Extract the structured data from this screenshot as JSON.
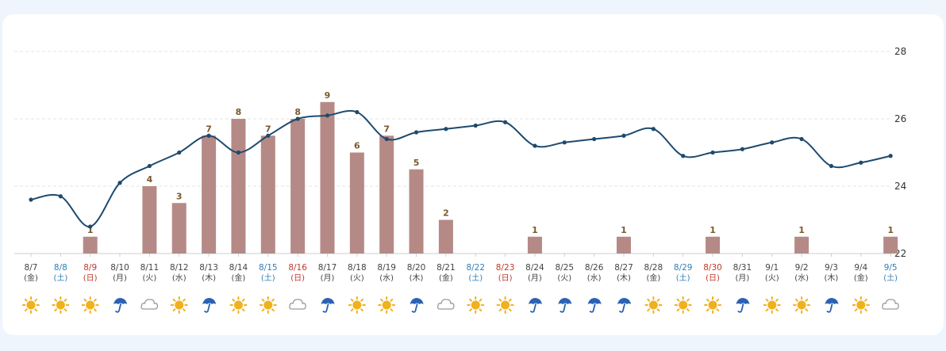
{
  "chart_data": {
    "type": "bar+line",
    "y_axis": {
      "ticks": [
        22,
        24,
        26,
        28
      ],
      "range": [
        22,
        28
      ],
      "position": "right"
    },
    "grid": true,
    "days": [
      {
        "date": "8/7",
        "dow": "(金)",
        "type": "weekday",
        "weather": "sunny",
        "temp": 23.6,
        "count": null
      },
      {
        "date": "8/8",
        "dow": "(土)",
        "type": "sat",
        "weather": "sunny",
        "temp": 23.7,
        "count": null
      },
      {
        "date": "8/9",
        "dow": "(日)",
        "type": "sun",
        "weather": "sunny",
        "temp": 22.8,
        "count": 1
      },
      {
        "date": "8/10",
        "dow": "(月)",
        "type": "weekday",
        "weather": "rain",
        "temp": 24.1,
        "count": null
      },
      {
        "date": "8/11",
        "dow": "(火)",
        "type": "weekday",
        "weather": "cloudy",
        "temp": 24.6,
        "count": 4
      },
      {
        "date": "8/12",
        "dow": "(水)",
        "type": "weekday",
        "weather": "sunny",
        "temp": 25.0,
        "count": 3
      },
      {
        "date": "8/13",
        "dow": "(木)",
        "type": "weekday",
        "weather": "rain",
        "temp": 25.5,
        "count": 7
      },
      {
        "date": "8/14",
        "dow": "(金)",
        "type": "weekday",
        "weather": "sunny",
        "temp": 25.0,
        "count": 8
      },
      {
        "date": "8/15",
        "dow": "(土)",
        "type": "sat",
        "weather": "sunny",
        "temp": 25.5,
        "count": 7
      },
      {
        "date": "8/16",
        "dow": "(日)",
        "type": "sun",
        "weather": "cloudy",
        "temp": 26.0,
        "count": 8
      },
      {
        "date": "8/17",
        "dow": "(月)",
        "type": "weekday",
        "weather": "rain",
        "temp": 26.1,
        "count": 9
      },
      {
        "date": "8/18",
        "dow": "(火)",
        "type": "weekday",
        "weather": "sunny",
        "temp": 26.2,
        "count": 6
      },
      {
        "date": "8/19",
        "dow": "(水)",
        "type": "weekday",
        "weather": "sunny",
        "temp": 25.4,
        "count": 7
      },
      {
        "date": "8/20",
        "dow": "(木)",
        "type": "weekday",
        "weather": "rain",
        "temp": 25.6,
        "count": 5
      },
      {
        "date": "8/21",
        "dow": "(金)",
        "type": "weekday",
        "weather": "cloudy",
        "temp": 25.7,
        "count": 2
      },
      {
        "date": "8/22",
        "dow": "(土)",
        "type": "sat",
        "weather": "sunny",
        "temp": 25.8,
        "count": null
      },
      {
        "date": "8/23",
        "dow": "(日)",
        "type": "sun",
        "weather": "sunny",
        "temp": 25.9,
        "count": null
      },
      {
        "date": "8/24",
        "dow": "(月)",
        "type": "weekday",
        "weather": "rain",
        "temp": 25.2,
        "count": 1
      },
      {
        "date": "8/25",
        "dow": "(火)",
        "type": "weekday",
        "weather": "rain",
        "temp": 25.3,
        "count": null
      },
      {
        "date": "8/26",
        "dow": "(水)",
        "type": "weekday",
        "weather": "rain",
        "temp": 25.4,
        "count": null
      },
      {
        "date": "8/27",
        "dow": "(木)",
        "type": "weekday",
        "weather": "rain",
        "temp": 25.5,
        "count": 1
      },
      {
        "date": "8/28",
        "dow": "(金)",
        "type": "weekday",
        "weather": "sunny",
        "temp": 25.7,
        "count": null
      },
      {
        "date": "8/29",
        "dow": "(土)",
        "type": "sat",
        "weather": "sunny",
        "temp": 24.9,
        "count": null
      },
      {
        "date": "8/30",
        "dow": "(日)",
        "type": "sun",
        "weather": "sunny",
        "temp": 25.0,
        "count": 1
      },
      {
        "date": "8/31",
        "dow": "(月)",
        "type": "weekday",
        "weather": "rain",
        "temp": 25.1,
        "count": null
      },
      {
        "date": "9/1",
        "dow": "(火)",
        "type": "weekday",
        "weather": "sunny",
        "temp": 25.3,
        "count": null
      },
      {
        "date": "9/2",
        "dow": "(水)",
        "type": "weekday",
        "weather": "sunny",
        "temp": 25.4,
        "count": 1
      },
      {
        "date": "9/3",
        "dow": "(木)",
        "type": "weekday",
        "weather": "rain",
        "temp": 24.6,
        "count": null
      },
      {
        "date": "9/4",
        "dow": "(金)",
        "type": "weekday",
        "weather": "sunny",
        "temp": 24.7,
        "count": null
      },
      {
        "date": "9/5",
        "dow": "(土)",
        "type": "sat",
        "weather": "cloudy",
        "temp": 24.9,
        "count": 1
      }
    ],
    "colors": {
      "bar": "#b58a86",
      "line": "#1e4a6e",
      "weekday": "#444444",
      "sat": "#2f7fb7",
      "sun": "#c0392b",
      "sun_icon": "#f0b11e",
      "umbrella_icon": "#2b62b4",
      "cloud_icon": "#9a9a9a"
    }
  }
}
